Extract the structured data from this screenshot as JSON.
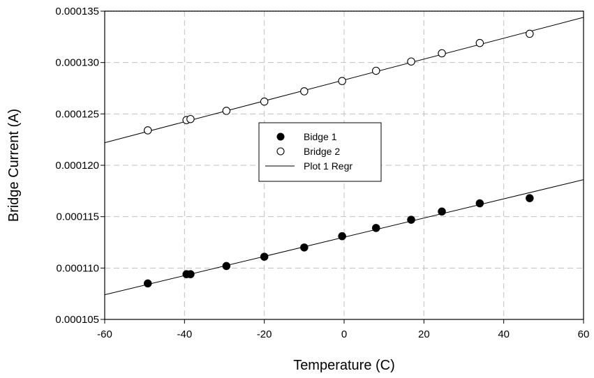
{
  "chart_data": {
    "type": "scatter",
    "xlabel": "Temperature (C)",
    "ylabel": "Bridge Current (A)",
    "xlim": [
      -60,
      60
    ],
    "ylim": [
      0.000105,
      0.000135
    ],
    "x_ticks": [
      "-60",
      "-40",
      "-20",
      "0",
      "20",
      "40",
      "60"
    ],
    "y_ticks": [
      "0.000105",
      "0.000110",
      "0.000115",
      "0.000120",
      "0.000125",
      "0.000130",
      "0.000135"
    ],
    "grid": true,
    "legend_position": "center",
    "series": [
      {
        "name": "Bidge 1",
        "marker": "filled-circle",
        "x": [
          -49.2,
          -39.5,
          -38.5,
          -29.5,
          -20.0,
          -10.0,
          -0.5,
          8.0,
          16.8,
          24.5,
          34.0,
          46.5
        ],
        "y": [
          0.0001085,
          0.0001094,
          0.0001094,
          0.0001102,
          0.0001111,
          0.000112,
          0.0001131,
          0.0001139,
          0.0001147,
          0.0001155,
          0.0001163,
          0.0001168
        ]
      },
      {
        "name": "Bridge 2",
        "marker": "open-circle",
        "x": [
          -49.2,
          -39.5,
          -38.5,
          -29.5,
          -20.0,
          -10.0,
          -0.5,
          8.0,
          16.8,
          24.5,
          34.0,
          46.5
        ],
        "y": [
          0.0001234,
          0.0001244,
          0.0001245,
          0.0001253,
          0.0001262,
          0.0001272,
          0.0001282,
          0.0001292,
          0.0001301,
          0.0001309,
          0.0001319,
          0.0001328
        ]
      }
    ],
    "regression_lines": [
      {
        "name": "Plot 1 Regr",
        "x": [
          -60,
          60
        ],
        "y": [
          0.0001074,
          0.0001186
        ]
      },
      {
        "x": [
          -60,
          60
        ],
        "y": [
          0.0001222,
          0.0001344
        ]
      }
    ],
    "legend": {
      "items": [
        {
          "label": "Bidge 1",
          "symbol": "filled-circle"
        },
        {
          "label": "Bridge 2",
          "symbol": "open-circle"
        },
        {
          "label": "Plot 1 Regr",
          "symbol": "line"
        }
      ]
    },
    "colors": {
      "axis": "#000000",
      "grid": "#c0c0c0",
      "marker": "#000000"
    }
  }
}
